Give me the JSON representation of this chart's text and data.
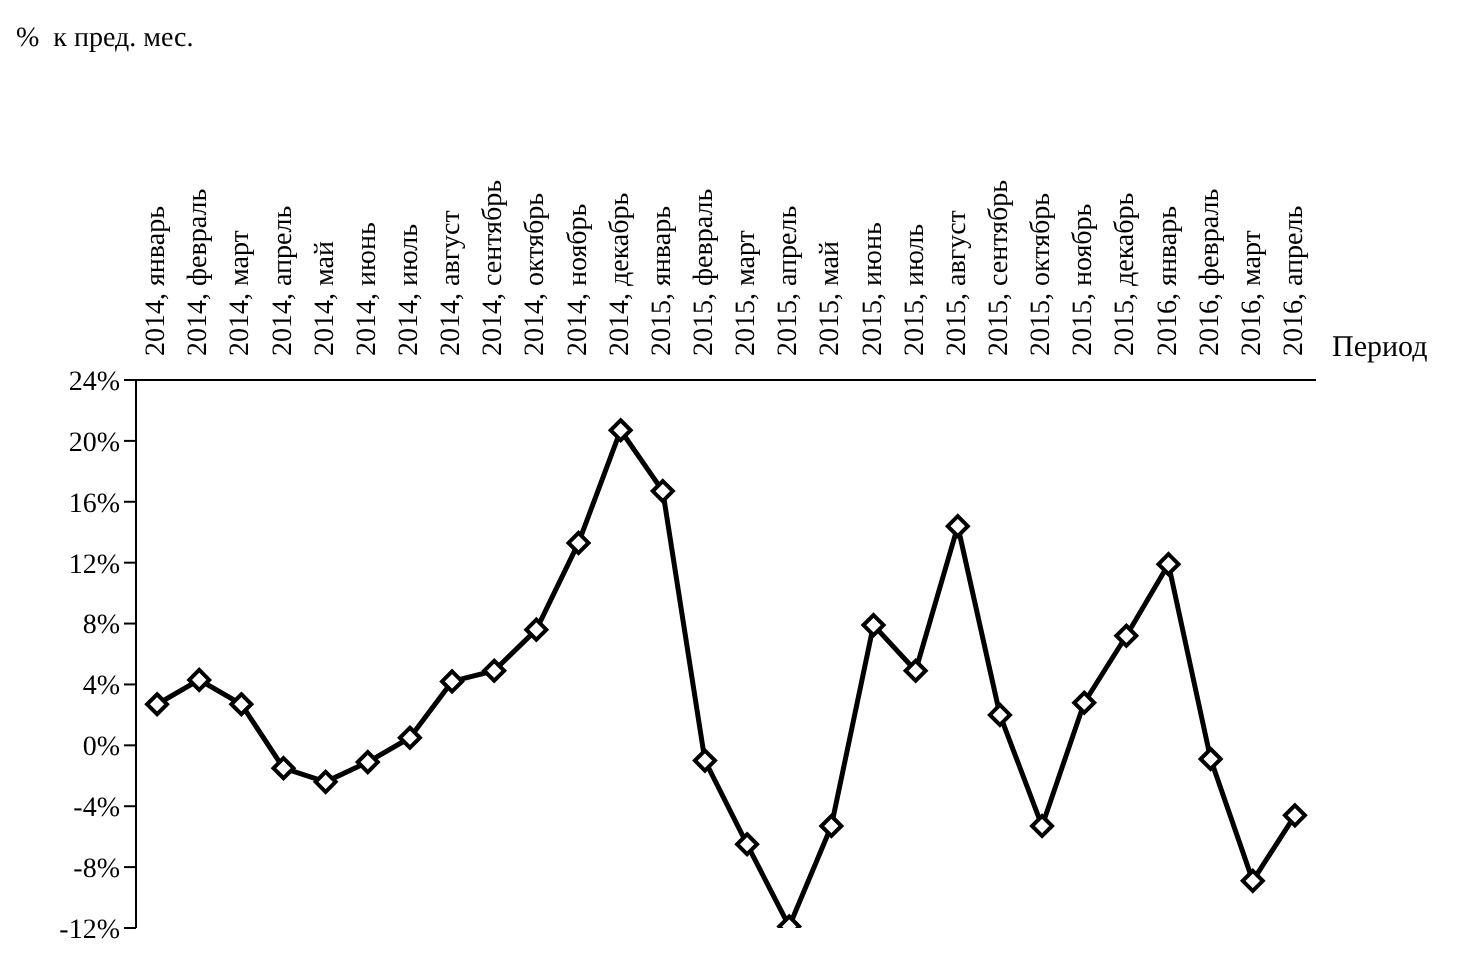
{
  "chart_data": {
    "type": "line",
    "ylabel": "%  к пред. мес.",
    "xlabel": "Период",
    "categories": [
      "2014, январь",
      "2014, февраль",
      "2014, март",
      "2014, апрель",
      "2014, май",
      "2014, июнь",
      "2014, июль",
      "2014, август",
      "2014, сентябрь",
      "2014, октябрь",
      "2014, ноябрь",
      "2014, декабрь",
      "2015, январь",
      "2015, февраль",
      "2015, март",
      "2015, апрель",
      "2015, май",
      "2015, июнь",
      "2015, июль",
      "2015, август",
      "2015, сентябрь",
      "2015, октябрь",
      "2015, ноябрь",
      "2015, декабрь",
      "2016, январь",
      "2016, февраль",
      "2016, март",
      "2016, апрель"
    ],
    "series": [
      {
        "color": "#000000",
        "values": [
          2.7,
          4.3,
          2.7,
          -1.5,
          -2.4,
          -1.1,
          0.5,
          4.2,
          4.9,
          7.6,
          13.3,
          20.7,
          16.7,
          -1.0,
          -6.5,
          -11.9,
          -5.3,
          7.9,
          4.9,
          14.4,
          2.0,
          -5.3,
          2.8,
          7.2,
          11.9,
          -0.9,
          -8.9,
          -4.6
        ]
      }
    ],
    "ylim": [
      -12,
      24
    ],
    "yticks": [
      {
        "value": -12,
        "label": "-12%"
      },
      {
        "value": -8,
        "label": "-8%"
      },
      {
        "value": -4,
        "label": "-4%"
      },
      {
        "value": 0,
        "label": "0%"
      },
      {
        "value": 4,
        "label": "4%"
      },
      {
        "value": 8,
        "label": "8%"
      },
      {
        "value": 12,
        "label": "12%"
      },
      {
        "value": 16,
        "label": "16%"
      },
      {
        "value": 20,
        "label": "20%"
      },
      {
        "value": 24,
        "label": "24%"
      }
    ],
    "grid": false,
    "legend": false,
    "marker": "diamond",
    "line_style": "solid"
  }
}
